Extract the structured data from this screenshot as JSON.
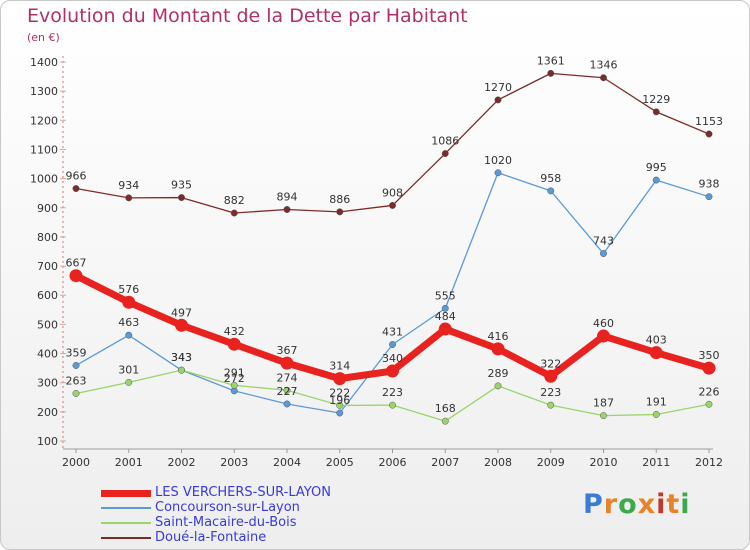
{
  "header": {
    "title": "Evolution du Montant de la Dette par Habitant",
    "subtitle": "(en €)"
  },
  "logo": {
    "text": "Proxiti",
    "colors": [
      "#3a7bd5",
      "#e9832a",
      "#3fa84a",
      "#e9832a",
      "#c0392b",
      "#e9832a",
      "#3fa84a"
    ]
  },
  "chart_data": {
    "type": "line",
    "title": "Evolution du Montant de la Dette par Habitant",
    "subtitle": "(en €)",
    "xlabel": "",
    "ylabel": "",
    "categories": [
      "2000",
      "2001",
      "2002",
      "2003",
      "2004",
      "2005",
      "2006",
      "2007",
      "2008",
      "2009",
      "2010",
      "2011",
      "2012"
    ],
    "ylim": [
      100,
      1400
    ],
    "yticks": [
      100,
      200,
      300,
      400,
      500,
      600,
      700,
      800,
      900,
      1000,
      1100,
      1200,
      1300,
      1400
    ],
    "grid": false,
    "legend": "bottom-left",
    "series": [
      {
        "name": "Doué-la-Fontaine",
        "color": "#7d2a2a",
        "values": [
          966,
          934,
          935,
          882,
          894,
          886,
          908,
          1086,
          1270,
          1361,
          1346,
          1229,
          1153
        ],
        "labels": [
          "966",
          "934",
          "935",
          "882",
          "894",
          "886",
          "908",
          "1086",
          "1270",
          "1361",
          "1346",
          "1229",
          "1153"
        ]
      },
      {
        "name": "Concourson-sur-Layon",
        "color": "#5a9ad6",
        "values": [
          359,
          463,
          343,
          272,
          227,
          196,
          431,
          555,
          1020,
          958,
          743,
          995,
          938
        ],
        "labels": [
          "359",
          "463",
          "343",
          "272",
          "227",
          "196",
          "431",
          "555",
          "1020",
          "958",
          "743",
          "995",
          "938"
        ]
      },
      {
        "name": "Saint-Macaire-du-Bois",
        "color": "#9ad46a",
        "values": [
          263,
          301,
          343,
          291,
          274,
          222,
          223,
          168,
          289,
          223,
          187,
          191,
          226
        ],
        "labels": [
          "263",
          "301",
          "343",
          "291",
          "274",
          "222",
          "223",
          "168",
          "289",
          "223",
          "187",
          "191",
          "226"
        ]
      },
      {
        "name": "LES VERCHERS-SUR-LAYON",
        "color": "#e8231f",
        "values": [
          667,
          576,
          497,
          432,
          367,
          314,
          340,
          484,
          416,
          322,
          460,
          403,
          350
        ],
        "labels": [
          "667",
          "576",
          "497",
          "432",
          "367",
          "314",
          "340",
          "484",
          "416",
          "322",
          "460",
          "403",
          "350"
        ]
      }
    ],
    "legend_order": [
      "LES VERCHERS-SUR-LAYON",
      "Concourson-sur-Layon",
      "Saint-Macaire-du-Bois",
      "Doué-la-Fontaine"
    ]
  }
}
